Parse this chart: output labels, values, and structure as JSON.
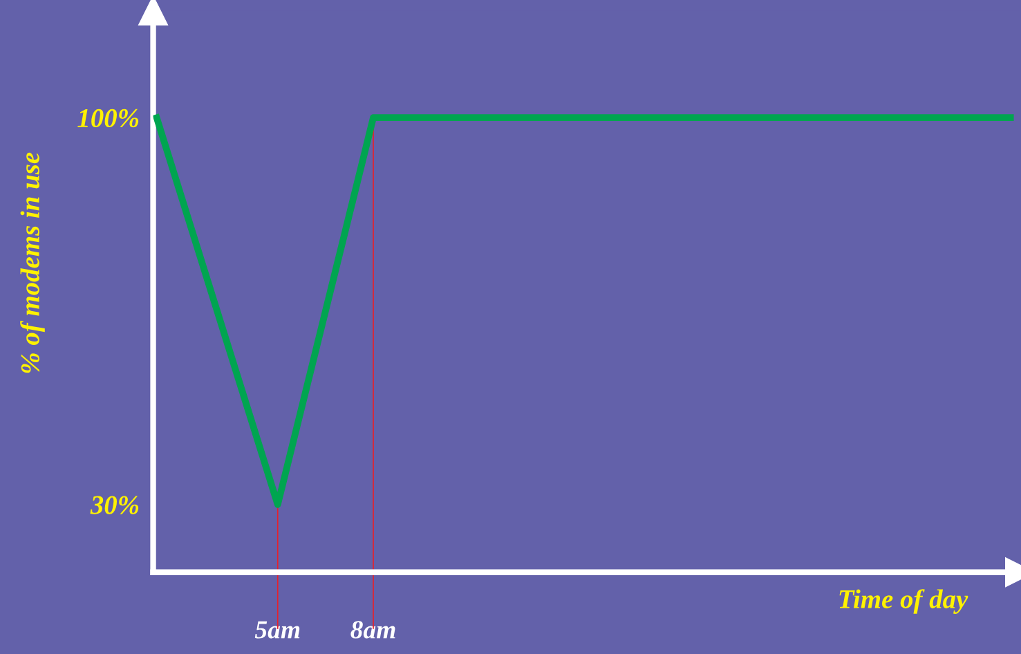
{
  "chart_data": {
    "type": "line",
    "xlabel": "Time of day",
    "ylabel": "% of modems in use",
    "x": [
      1.2,
      5,
      8,
      28
    ],
    "series": [
      {
        "color": "#00a550",
        "values": [
          100,
          30,
          100,
          100
        ]
      }
    ],
    "xlim": [
      1.09,
      28.3
    ],
    "ylim": [
      17.75,
      119.4
    ],
    "xticks": [
      {
        "value": 5,
        "label": "5am"
      },
      {
        "value": 8,
        "label": "8am"
      }
    ],
    "yticks": [
      {
        "value": 30,
        "label": "30%"
      },
      {
        "value": 100,
        "label": "100%"
      }
    ],
    "ref_lines": [
      {
        "axis": "x",
        "value": 5,
        "label": null,
        "color": "#e8202a"
      },
      {
        "axis": "x",
        "value": 8,
        "label": null,
        "color": "#e8202a"
      }
    ],
    "grid": false,
    "legend": false,
    "marker": "none",
    "line_style": "solid"
  }
}
